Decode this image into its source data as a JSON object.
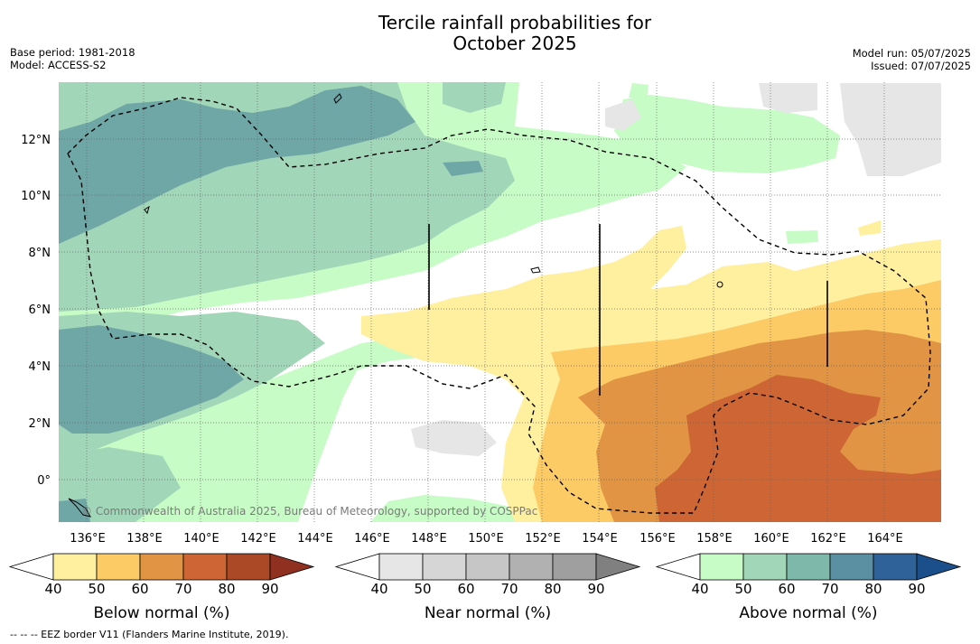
{
  "title_line1": "Tercile rainfall probabilities for",
  "title_line2": "October 2025",
  "base_period": "Base period: 1981-2018",
  "model": "Model: ACCESS-S2",
  "model_run": "Model run: 05/07/2025",
  "issued": "Issued: 07/07/2025",
  "copyright": "© Commonwealth of Australia 2025, Bureau of Meteorology, supported by COSPPac",
  "footer": "-- -- -- EEZ border V11 (Flanders Marine Institute, 2019).",
  "map": {
    "lon_range": [
      135,
      166
    ],
    "lat_range": [
      -1.5,
      14
    ],
    "lon_ticks": [
      "136°E",
      "138°E",
      "140°E",
      "142°E",
      "144°E",
      "146°E",
      "148°E",
      "150°E",
      "152°E",
      "154°E",
      "156°E",
      "158°E",
      "160°E",
      "162°E",
      "164°E"
    ],
    "lat_ticks": [
      "12°N",
      "10°N",
      "8°N",
      "6°N",
      "4°N",
      "2°N",
      "0°"
    ],
    "grid": true
  },
  "colorbars": [
    {
      "label": "Below normal (%)",
      "ticks": [
        "40",
        "50",
        "60",
        "70",
        "80",
        "90"
      ],
      "colors": [
        "#fff0a0",
        "#fdcb66",
        "#e09444",
        "#cd6534",
        "#ab4826"
      ],
      "extend_color": "#8f3020"
    },
    {
      "label": "Near normal (%)",
      "ticks": [
        "40",
        "50",
        "60",
        "70",
        "80",
        "90"
      ],
      "colors": [
        "#e6e6e6",
        "#d6d6d6",
        "#c6c6c6",
        "#b1b1b1",
        "#9f9f9f"
      ],
      "extend_color": "#808080"
    },
    {
      "label": "Above normal (%)",
      "ticks": [
        "40",
        "50",
        "60",
        "70",
        "80",
        "90"
      ],
      "colors": [
        "#c8fcc6",
        "#a2d6b8",
        "#7db8aa",
        "#5b8fa2",
        "#2f6298"
      ],
      "extend_color": "#1b4f8c"
    }
  ]
}
